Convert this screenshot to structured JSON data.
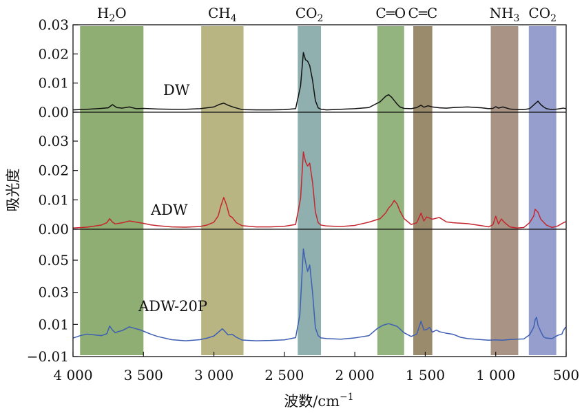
{
  "chart_data": {
    "type": "line",
    "xlabel": "波数/cm",
    "xlabel_sup": "−1",
    "ylabel": "吸光度",
    "x_reversed": true,
    "xlim": [
      4000,
      500
    ],
    "x_ticks": [
      4000,
      3500,
      3000,
      2500,
      2000,
      1500,
      1000,
      500
    ],
    "x_tick_labels": [
      "4 000",
      "3 500",
      "3 000",
      "2 500",
      "2 000",
      "1 500",
      "1 000",
      "500"
    ],
    "bands": [
      {
        "label": "H",
        "sub": "2",
        "label_after": "O",
        "from": 3950,
        "to": 3500,
        "color": "#8fae73"
      },
      {
        "label": "CH",
        "sub": "4",
        "label_after": "",
        "from": 3090,
        "to": 2790,
        "color": "#b8b583"
      },
      {
        "label": "CO",
        "sub": "2",
        "label_after": "",
        "from": 2405,
        "to": 2240,
        "color": "#8fb0af"
      },
      {
        "label": "C═O",
        "sub": "",
        "label_after": "",
        "from": 1840,
        "to": 1650,
        "color": "#93b47e"
      },
      {
        "label": "C═C",
        "sub": "",
        "label_after": "",
        "from": 1585,
        "to": 1450,
        "color": "#9a8b6d"
      },
      {
        "label": "NH",
        "sub": "3",
        "label_after": "",
        "from": 1035,
        "to": 840,
        "color": "#a99384"
      },
      {
        "label": "CO",
        "sub": "2",
        "label_after": "",
        "from": 765,
        "to": 570,
        "color": "#959ecd"
      }
    ],
    "panels": [
      {
        "name": "DW",
        "color": "#111111",
        "ylim": [
          -0.001,
          0.03
        ],
        "y_ticks": [
          0.0,
          0.01,
          0.02,
          0.03
        ],
        "y_tick_labels": [
          "0.00",
          "0.01",
          "0.02",
          "0.03"
        ],
        "x": [
          4000,
          3900,
          3800,
          3750,
          3720,
          3690,
          3650,
          3600,
          3550,
          3500,
          3400,
          3300,
          3200,
          3100,
          3000,
          2960,
          2930,
          2900,
          2860,
          2800,
          2700,
          2600,
          2500,
          2420,
          2385,
          2365,
          2350,
          2335,
          2320,
          2300,
          2280,
          2260,
          2240,
          2200,
          2100,
          2000,
          1900,
          1820,
          1780,
          1760,
          1740,
          1720,
          1700,
          1680,
          1650,
          1600,
          1560,
          1530,
          1510,
          1480,
          1450,
          1400,
          1350,
          1300,
          1200,
          1100,
          1050,
          1020,
          1000,
          980,
          950,
          900,
          850,
          800,
          760,
          730,
          700,
          680,
          660,
          640,
          600,
          560,
          520,
          500
        ],
        "y": [
          0.0008,
          0.001,
          0.0013,
          0.0015,
          0.0026,
          0.0016,
          0.0014,
          0.0018,
          0.0012,
          0.0013,
          0.0011,
          0.001,
          0.001,
          0.0012,
          0.0018,
          0.0027,
          0.0031,
          0.0024,
          0.0017,
          0.0009,
          0.0008,
          0.0008,
          0.0009,
          0.0012,
          0.009,
          0.0205,
          0.018,
          0.0175,
          0.016,
          0.011,
          0.004,
          0.0015,
          0.001,
          0.0008,
          0.001,
          0.0012,
          0.0016,
          0.0036,
          0.0055,
          0.006,
          0.0052,
          0.004,
          0.0028,
          0.0018,
          0.0013,
          0.0012,
          0.0016,
          0.0024,
          0.0017,
          0.0022,
          0.0018,
          0.0015,
          0.0014,
          0.0016,
          0.0018,
          0.0015,
          0.0012,
          0.0013,
          0.0019,
          0.0014,
          0.0018,
          0.0011,
          0.0009,
          0.0009,
          0.0012,
          0.0025,
          0.0038,
          0.0026,
          0.0018,
          0.0012,
          0.0009,
          0.0011,
          0.0014,
          0.0012
        ]
      },
      {
        "name": "ADW",
        "color": "#c4262e",
        "ylim": [
          -0.001,
          0.03
        ],
        "y_ticks": [
          0.0,
          0.01,
          0.02,
          0.03
        ],
        "y_tick_labels": [
          "0.00",
          "0.01",
          "0.02",
          "0.03"
        ],
        "x": [
          4000,
          3900,
          3800,
          3760,
          3740,
          3720,
          3700,
          3650,
          3600,
          3550,
          3500,
          3450,
          3400,
          3300,
          3200,
          3100,
          3050,
          3000,
          2970,
          2950,
          2930,
          2910,
          2890,
          2870,
          2840,
          2800,
          2700,
          2600,
          2500,
          2420,
          2385,
          2365,
          2350,
          2335,
          2320,
          2300,
          2280,
          2260,
          2240,
          2200,
          2100,
          2000,
          1900,
          1820,
          1780,
          1760,
          1740,
          1720,
          1700,
          1680,
          1650,
          1600,
          1560,
          1530,
          1510,
          1490,
          1470,
          1450,
          1400,
          1350,
          1300,
          1200,
          1100,
          1050,
          1020,
          1000,
          980,
          960,
          940,
          900,
          850,
          800,
          760,
          730,
          720,
          700,
          680,
          660,
          640,
          600,
          560,
          520,
          500
        ],
        "y": [
          0.0004,
          0.0007,
          0.0014,
          0.0022,
          0.0036,
          0.0024,
          0.0018,
          0.0022,
          0.0028,
          0.0024,
          0.002,
          0.0015,
          0.0012,
          0.0008,
          0.0007,
          0.0009,
          0.0014,
          0.0024,
          0.0045,
          0.008,
          0.0108,
          0.0082,
          0.0046,
          0.004,
          0.0022,
          0.0012,
          0.0008,
          0.0008,
          0.001,
          0.0016,
          0.0105,
          0.0263,
          0.023,
          0.0215,
          0.0225,
          0.016,
          0.006,
          0.0022,
          0.0014,
          0.0011,
          0.0009,
          0.0013,
          0.0024,
          0.0036,
          0.0056,
          0.0072,
          0.0082,
          0.0098,
          0.0086,
          0.0062,
          0.0036,
          0.0016,
          0.0022,
          0.0055,
          0.0028,
          0.0042,
          0.0038,
          0.0034,
          0.004,
          0.0025,
          0.0022,
          0.0019,
          0.0012,
          0.0008,
          0.0015,
          0.0044,
          0.0018,
          0.0035,
          0.0024,
          0.0008,
          0.0004,
          0.0006,
          0.0022,
          0.0045,
          0.0068,
          0.0058,
          0.0034,
          0.0024,
          0.0014,
          0.0006,
          0.0011,
          0.0022,
          0.0026
        ]
      },
      {
        "name": "ADW-20P",
        "color": "#3d5eb2",
        "ylim": [
          -0.01,
          0.07
        ],
        "y_ticks": [
          -0.01,
          0.01,
          0.03,
          0.05
        ],
        "y_tick_labels": [
          "−0.01",
          "0.01",
          "0.03",
          "0.05"
        ],
        "x": [
          4000,
          3950,
          3900,
          3850,
          3800,
          3760,
          3740,
          3720,
          3700,
          3680,
          3650,
          3600,
          3560,
          3520,
          3500,
          3450,
          3400,
          3300,
          3200,
          3100,
          3050,
          3000,
          2960,
          2940,
          2920,
          2900,
          2870,
          2840,
          2800,
          2700,
          2600,
          2500,
          2420,
          2390,
          2365,
          2350,
          2335,
          2320,
          2300,
          2280,
          2260,
          2240,
          2200,
          2100,
          2000,
          1900,
          1840,
          1800,
          1760,
          1720,
          1700,
          1680,
          1650,
          1600,
          1560,
          1530,
          1510,
          1490,
          1470,
          1450,
          1420,
          1400,
          1350,
          1300,
          1250,
          1200,
          1100,
          1050,
          1000,
          950,
          900,
          850,
          800,
          760,
          730,
          720,
          710,
          700,
          680,
          660,
          640,
          600,
          560,
          530,
          520,
          505,
          500
        ],
        "y": [
          0.0015,
          0.003,
          0.004,
          0.0035,
          0.003,
          0.0042,
          0.009,
          0.0065,
          0.0048,
          0.0055,
          0.0062,
          0.0085,
          0.0075,
          0.0065,
          0.0058,
          0.004,
          0.0025,
          0.0005,
          -0.0002,
          0.0005,
          0.0014,
          0.0028,
          0.0058,
          0.0073,
          0.0055,
          0.0035,
          0.0038,
          0.002,
          0.0003,
          -0.0002,
          0.0,
          0.0004,
          0.0018,
          0.016,
          0.057,
          0.049,
          0.043,
          0.047,
          0.03,
          0.008,
          0.003,
          0.0016,
          0.0012,
          0.0008,
          0.0016,
          0.003,
          0.0075,
          0.0095,
          0.0105,
          0.0094,
          0.0088,
          0.0072,
          0.0048,
          0.0025,
          0.004,
          0.012,
          0.0065,
          0.0068,
          0.0082,
          0.0052,
          0.0065,
          0.0055,
          0.0045,
          0.0038,
          0.002,
          0.0012,
          0.0005,
          0.0002,
          0.0004,
          0.0002,
          0.0006,
          0.0008,
          0.001,
          0.0035,
          0.0082,
          0.013,
          0.0145,
          0.0095,
          0.0055,
          0.0022,
          0.0015,
          0.0012,
          0.0032,
          0.004,
          0.0062,
          0.0082,
          0.0078
        ]
      }
    ]
  }
}
